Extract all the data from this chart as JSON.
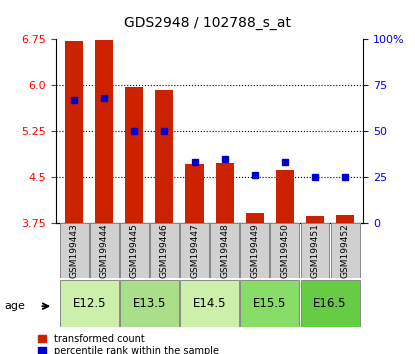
{
  "title": "GDS2948 / 102788_s_at",
  "samples": [
    "GSM199443",
    "GSM199444",
    "GSM199445",
    "GSM199446",
    "GSM199447",
    "GSM199448",
    "GSM199449",
    "GSM199450",
    "GSM199451",
    "GSM199452"
  ],
  "transformed_count": [
    6.71,
    6.74,
    5.97,
    5.92,
    4.72,
    4.73,
    3.91,
    4.62,
    3.87,
    3.88
  ],
  "percentile_rank": [
    67,
    68,
    50,
    50,
    33,
    35,
    26,
    33,
    25,
    25
  ],
  "age_groups": [
    {
      "label": "E12.5",
      "samples": [
        0,
        1
      ],
      "color": "#ccf0aa"
    },
    {
      "label": "E13.5",
      "samples": [
        2,
        3
      ],
      "color": "#aade88"
    },
    {
      "label": "E14.5",
      "samples": [
        4,
        5
      ],
      "color": "#ccf0aa"
    },
    {
      "label": "E15.5",
      "samples": [
        6,
        7
      ],
      "color": "#88dd66"
    },
    {
      "label": "E16.5",
      "samples": [
        8,
        9
      ],
      "color": "#66cc44"
    }
  ],
  "ylim_left": [
    3.75,
    6.75
  ],
  "ylim_right": [
    0,
    100
  ],
  "yticks_left": [
    3.75,
    4.5,
    5.25,
    6.0,
    6.75
  ],
  "yticks_right": [
    0,
    25,
    50,
    75,
    100
  ],
  "bar_color": "#cc2200",
  "dot_color": "#0000cc",
  "bar_width": 0.6,
  "baseline": 3.75,
  "sample_box_color": "#d0d0d0",
  "sample_box_edge": "#888888"
}
